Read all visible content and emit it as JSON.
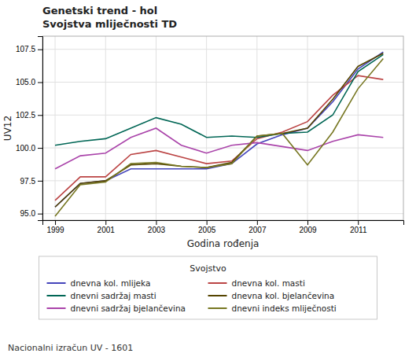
{
  "chart_data": {
    "type": "line",
    "title": "Genetski trend - hol",
    "subtitle": "Svojstva mliječnosti TD",
    "x_label": "Godina rođenja",
    "y_label": "UV12",
    "legend_title": "Svojstvo",
    "footnote": "Nacionalni izračun UV - 1601",
    "xlim": [
      1998.5,
      2012.8
    ],
    "ylim": [
      94.5,
      108.5
    ],
    "xticks": [
      1999,
      2001,
      2003,
      2005,
      2007,
      2009,
      2011
    ],
    "yticks": [
      {
        "value": 95.0,
        "label": "95.0"
      },
      97.5,
      {
        "value": 100.0,
        "label": "100.0"
      },
      102.5,
      {
        "value": 105.0,
        "label": "105.0"
      },
      107.5
    ],
    "grid": true,
    "legend": "bottom",
    "x": [
      1999,
      2000,
      2001,
      2002,
      2003,
      2004,
      2005,
      2006,
      2007,
      2008,
      2009,
      2010,
      2011,
      2012
    ],
    "series": [
      {
        "name": "dnevna kol. mlijeka",
        "color": "#4444bb",
        "values": [
          95.5,
          97.3,
          97.5,
          98.4,
          98.4,
          98.4,
          98.4,
          98.8,
          100.3,
          101.0,
          101.5,
          103.5,
          106.0,
          107.3
        ]
      },
      {
        "name": "dnevna kol. masti",
        "color": "#bb4444",
        "values": [
          96.0,
          97.8,
          97.8,
          99.5,
          99.8,
          99.3,
          98.8,
          99.0,
          100.7,
          101.2,
          102.0,
          104.0,
          105.5,
          105.2
        ]
      },
      {
        "name": "dnevni sadržaj masti",
        "color": "#006655",
        "values": [
          100.2,
          100.5,
          100.7,
          101.5,
          102.3,
          101.8,
          100.8,
          100.9,
          100.8,
          101.1,
          101.2,
          102.5,
          105.8,
          107.1
        ]
      },
      {
        "name": "dnevna kol. bjelančevina",
        "color": "#554400",
        "values": [
          95.5,
          97.3,
          97.5,
          98.7,
          98.8,
          98.6,
          98.5,
          98.9,
          100.9,
          101.1,
          101.5,
          103.7,
          106.2,
          107.2
        ]
      },
      {
        "name": "dnevni sadržaj bjelančevina",
        "color": "#aa44aa",
        "values": [
          98.4,
          99.4,
          99.6,
          100.8,
          101.5,
          100.2,
          99.6,
          100.2,
          100.4,
          100.1,
          99.8,
          100.5,
          101.0,
          100.8
        ]
      },
      {
        "name": "dnevni indeks mliječnosti",
        "color": "#777722",
        "values": [
          94.8,
          97.2,
          97.4,
          98.8,
          98.9,
          98.6,
          98.5,
          98.8,
          100.9,
          101.1,
          98.7,
          101.2,
          104.5,
          106.8
        ]
      }
    ]
  }
}
